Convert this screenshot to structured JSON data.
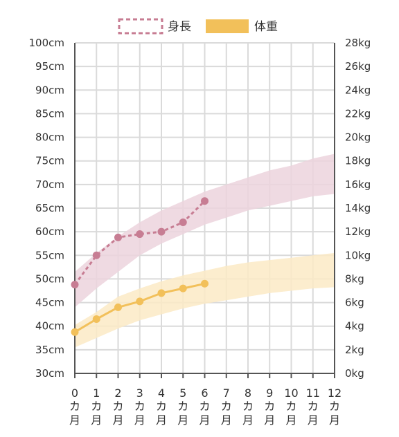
{
  "chart_data": {
    "type": "line",
    "title": "",
    "legend": {
      "position": "top-center",
      "entries": [
        {
          "label": "身長",
          "style": "dashed-box",
          "color": "#c77d93"
        },
        {
          "label": "体重",
          "style": "filled-box",
          "color": "#f2c05a"
        }
      ]
    },
    "x": {
      "min": 0,
      "max": 12,
      "ticks": [
        0,
        1,
        2,
        3,
        4,
        5,
        6,
        7,
        8,
        9,
        10,
        11,
        12
      ],
      "tick_suffix_lines": [
        "カ",
        "月"
      ]
    },
    "y_left": {
      "min": 30,
      "max": 100,
      "step": 5,
      "unit": "cm",
      "ticks": [
        "100cm",
        "95cm",
        "90cm",
        "85cm",
        "80cm",
        "75cm",
        "70cm",
        "65cm",
        "60cm",
        "55cm",
        "50cm",
        "45cm",
        "40cm",
        "35cm",
        "30cm"
      ]
    },
    "y_right": {
      "min": 0,
      "max": 28,
      "step": 2,
      "unit": "kg",
      "ticks": [
        "28kg",
        "26kg",
        "24kg",
        "22kg",
        "20kg",
        "18kg",
        "16kg",
        "14kg",
        "12kg",
        "10kg",
        "8kg",
        "6kg",
        "4kg",
        "2kg",
        "0kg"
      ]
    },
    "grid": true,
    "series": [
      {
        "name": "身長",
        "axis": "left",
        "color": "#c77d93",
        "dash": true,
        "x": [
          0,
          1,
          2,
          3,
          4,
          5,
          6
        ],
        "values": [
          48.8,
          55.0,
          58.8,
          59.5,
          60.0,
          62.0,
          66.5
        ]
      },
      {
        "name": "体重",
        "axis": "right",
        "color": "#f2c05a",
        "dash": false,
        "x": [
          0,
          1,
          2,
          3,
          4,
          5,
          6
        ],
        "values": [
          3.5,
          4.6,
          5.6,
          6.1,
          6.8,
          7.2,
          7.6
        ]
      }
    ],
    "bands": [
      {
        "series": "身長",
        "axis": "left",
        "color": "#ecd4dd",
        "x": [
          0,
          1,
          2,
          3,
          4,
          5,
          6,
          7,
          8,
          9,
          10,
          11,
          12
        ],
        "lower": [
          44.0,
          48.0,
          51.5,
          55.0,
          57.5,
          59.5,
          61.5,
          63.0,
          64.5,
          65.5,
          66.5,
          67.5,
          68.0
        ],
        "upper": [
          51.5,
          55.5,
          59.0,
          62.0,
          64.5,
          66.5,
          68.5,
          70.0,
          71.5,
          73.0,
          74.0,
          75.5,
          76.5
        ]
      },
      {
        "series": "体重",
        "axis": "right",
        "color": "#fbeac5",
        "x": [
          0,
          1,
          2,
          3,
          4,
          5,
          6,
          7,
          8,
          9,
          10,
          11,
          12
        ],
        "lower": [
          2.2,
          3.0,
          3.8,
          4.5,
          5.0,
          5.5,
          5.9,
          6.2,
          6.5,
          6.8,
          7.0,
          7.2,
          7.3
        ],
        "upper": [
          4.1,
          5.2,
          6.5,
          7.2,
          7.8,
          8.3,
          8.7,
          9.1,
          9.4,
          9.6,
          9.8,
          10.0,
          10.2
        ]
      }
    ]
  }
}
